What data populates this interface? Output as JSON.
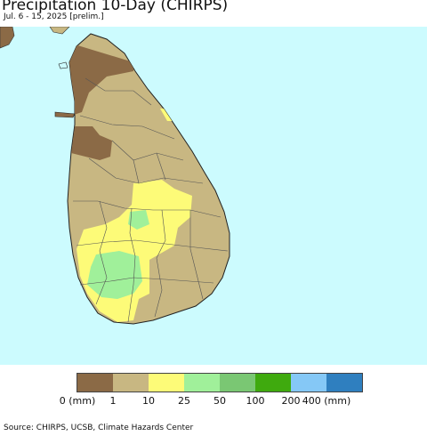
{
  "title": "Precipitation 10-Day (CHIRPS)",
  "subtitle": "Jul. 6 - 15, 2025 [prelim.]",
  "source": "Source: CHIRPS, UCSB, Climate Hazards Center",
  "legend": {
    "colors": [
      "#8b6a46",
      "#c8b782",
      "#fdfb78",
      "#a0f09a",
      "#7ac773",
      "#3faa0e",
      "#85c8f6",
      "#2f7fbf"
    ],
    "labels": [
      "0 (mm)",
      "1",
      "10",
      "25",
      "50",
      "100",
      "200",
      "400 (mm)"
    ]
  },
  "map": {
    "ocean_color": "#ccfbfe",
    "land_color": "#c8b782"
  }
}
